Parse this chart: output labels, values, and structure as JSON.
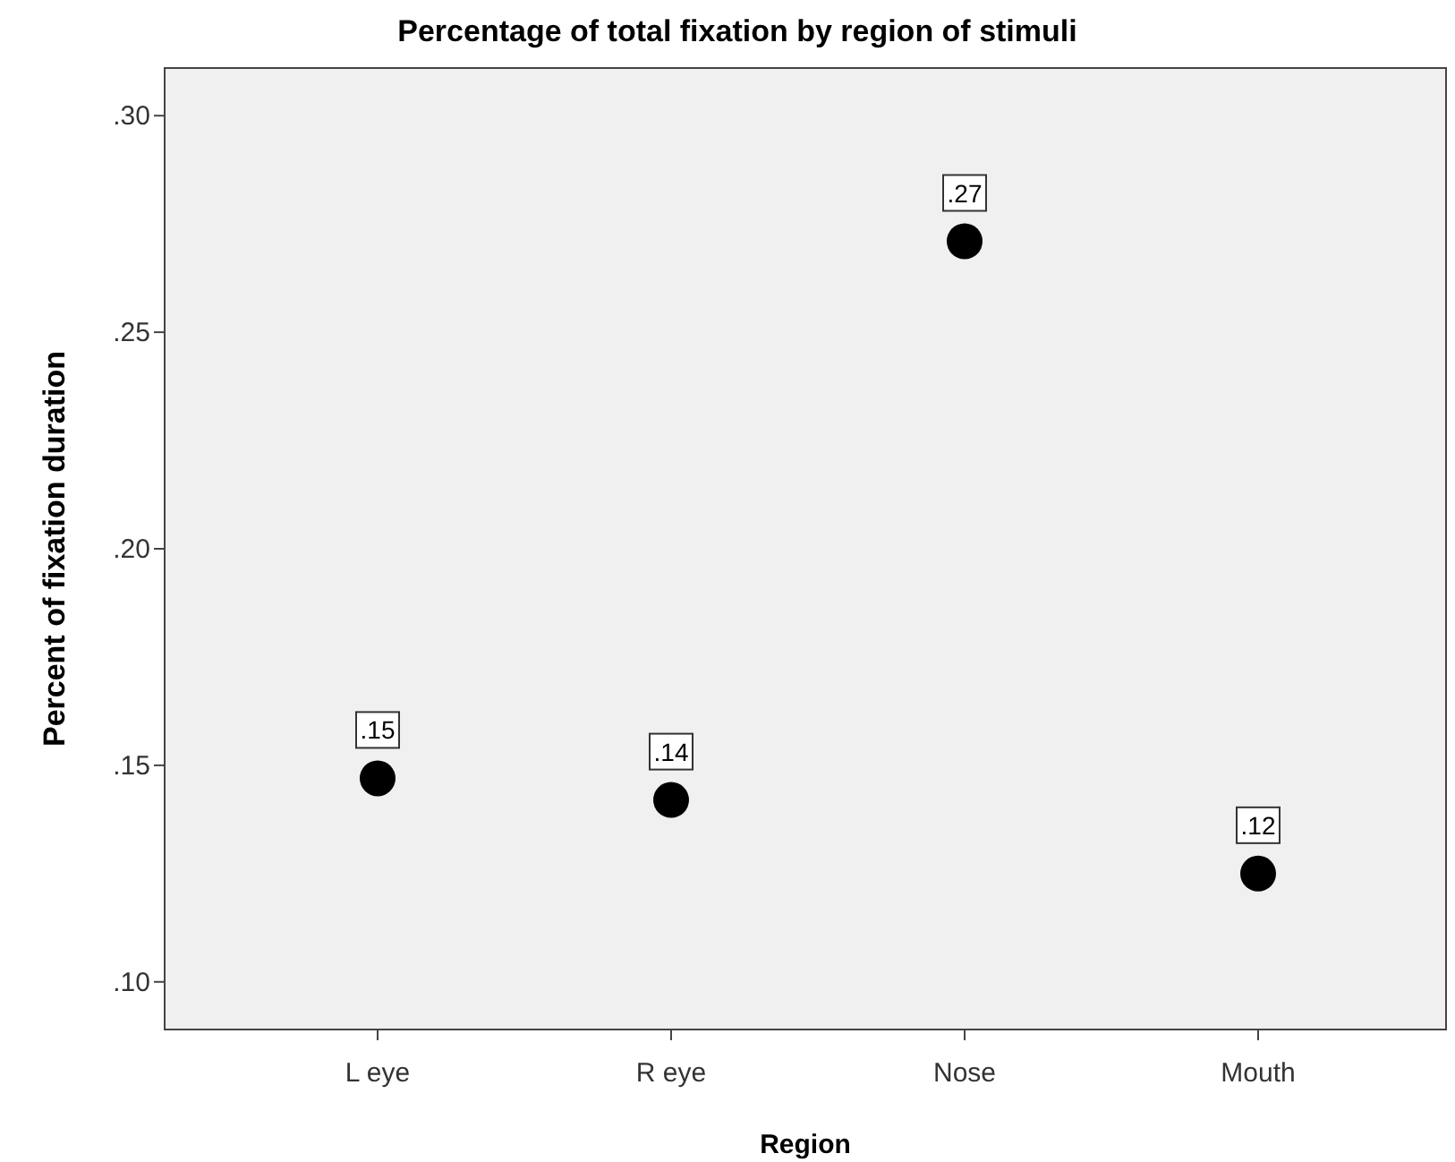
{
  "chart_data": {
    "type": "scatter",
    "title": "Percentage of total fixation by region of stimuli",
    "xlabel": "Region",
    "ylabel": "Percent of fixation duration",
    "categories": [
      "L eye",
      "R eye",
      "Nose",
      "Mouth"
    ],
    "series": [
      {
        "color": "#000000",
        "values": [
          0.147,
          0.142,
          0.271,
          0.125
        ],
        "value_labels": [
          ".15",
          ".14",
          ".27",
          ".12"
        ]
      }
    ],
    "ylim": [
      0.089,
      0.311
    ],
    "yticks": [
      {
        "value": 0.1,
        "label": ".10"
      },
      {
        "value": 0.15,
        "label": ".15"
      },
      {
        "value": 0.2,
        "label": ".20"
      },
      {
        "value": 0.25,
        "label": ".25"
      },
      {
        "value": 0.3,
        "label": ".30"
      }
    ],
    "grid": false,
    "marker": "circle"
  }
}
